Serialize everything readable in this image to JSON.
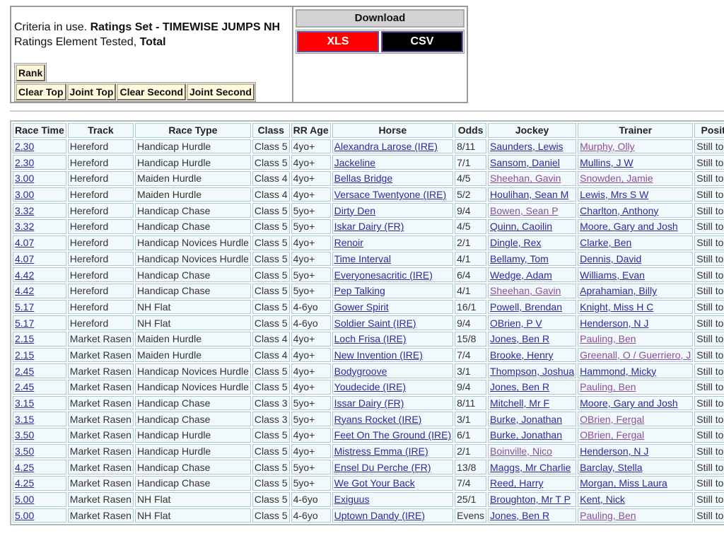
{
  "criteria": {
    "prefix": "Criteria in use.",
    "ratings_set": "Ratings Set - TIMEWISE JUMPS NH",
    "element_prefix": "Ratings Element Tested,",
    "element": "Total"
  },
  "buttons": {
    "rank": "Rank",
    "clear_top": "Clear Top",
    "joint_top": "Joint Top",
    "clear_second": "Clear Second",
    "joint_second": "Joint Second"
  },
  "download": {
    "title": "Download",
    "xls": "XLS",
    "csv": "CSV",
    "xls_color": "#ff0000",
    "csv_color": "#000000"
  },
  "table": {
    "headers": [
      "Race Time",
      "Track",
      "Race Type",
      "Class",
      "RR Age",
      "Horse",
      "Odds",
      "Jockey",
      "Trainer",
      "Position"
    ],
    "rows": [
      [
        "2.30",
        "Hereford",
        "Handicap Hurdle",
        "Class 5",
        "4yo+",
        "Alexandra Larose (IRE)",
        "8/11",
        "Saunders, Lewis",
        "Murphy, Olly",
        "Still to Run"
      ],
      [
        "2.30",
        "Hereford",
        "Handicap Hurdle",
        "Class 5",
        "4yo+",
        "Jackeline",
        "7/1",
        "Sansom, Daniel",
        "Mullins, J W",
        "Still to Run"
      ],
      [
        "3.00",
        "Hereford",
        "Maiden Hurdle",
        "Class 4",
        "4yo+",
        "Bellas Bridge",
        "4/5",
        "Sheehan, Gavin",
        "Snowden, Jamie",
        "Still to Run"
      ],
      [
        "3.00",
        "Hereford",
        "Maiden Hurdle",
        "Class 4",
        "4yo+",
        "Versace Twentyone (IRE)",
        "5/2",
        "Houlihan, Sean M",
        "Lewis, Mrs S W",
        "Still to Run"
      ],
      [
        "3.32",
        "Hereford",
        "Handicap Chase",
        "Class 5",
        "5yo+",
        "Dirty Den",
        "9/4",
        "Bowen, Sean P",
        "Charlton, Anthony",
        "Still to Run"
      ],
      [
        "3.32",
        "Hereford",
        "Handicap Chase",
        "Class 5",
        "5yo+",
        "Iskar Dairy (FR)",
        "4/5",
        "Quinn, Caoilin",
        "Moore, Gary and Josh",
        "Still to Run"
      ],
      [
        "4.07",
        "Hereford",
        "Handicap Novices Hurdle",
        "Class 5",
        "4yo+",
        "Renoir",
        "2/1",
        "Dingle, Rex",
        "Clarke, Ben",
        "Still to Run"
      ],
      [
        "4.07",
        "Hereford",
        "Handicap Novices Hurdle",
        "Class 5",
        "4yo+",
        "Time Interval",
        "4/1",
        "Bellamy, Tom",
        "Dennis, David",
        "Still to Run"
      ],
      [
        "4.42",
        "Hereford",
        "Handicap Chase",
        "Class 5",
        "5yo+",
        "Everyonesacritic (IRE)",
        "6/4",
        "Wedge, Adam",
        "Williams, Evan",
        "Still to Run"
      ],
      [
        "4.42",
        "Hereford",
        "Handicap Chase",
        "Class 5",
        "5yo+",
        "Pep Talking",
        "4/1",
        "Sheehan, Gavin",
        "Aprahamian, Billy",
        "Still to Run"
      ],
      [
        "5.17",
        "Hereford",
        "NH Flat",
        "Class 5",
        "4-6yo",
        "Gower Spirit",
        "16/1",
        "Powell, Brendan",
        "Knight, Miss H C",
        "Still to Run"
      ],
      [
        "5.17",
        "Hereford",
        "NH Flat",
        "Class 5",
        "4-6yo",
        "Soldier Saint (IRE)",
        "9/4",
        "OBrien, P V",
        "Henderson, N J",
        "Still to Run"
      ],
      [
        "2.15",
        "Market Rasen",
        "Maiden Hurdle",
        "Class 4",
        "4yo+",
        "Loch Frisa (IRE)",
        "15/8",
        "Jones, Ben R",
        "Pauling, Ben",
        "Still to Run"
      ],
      [
        "2.15",
        "Market Rasen",
        "Maiden Hurdle",
        "Class 4",
        "4yo+",
        "New Invention (IRE)",
        "7/4",
        "Brooke, Henry",
        "Greenall, O / Guerriero, J",
        "Still to Run"
      ],
      [
        "2.45",
        "Market Rasen",
        "Handicap Novices Hurdle",
        "Class 5",
        "4yo+",
        "Bodygroove",
        "3/1",
        "Thompson, Joshua",
        "Hammond, Micky",
        "Still to Run"
      ],
      [
        "2.45",
        "Market Rasen",
        "Handicap Novices Hurdle",
        "Class 5",
        "4yo+",
        "Youdecide (IRE)",
        "9/4",
        "Jones, Ben R",
        "Pauling, Ben",
        "Still to Run"
      ],
      [
        "3.15",
        "Market Rasen",
        "Handicap Chase",
        "Class 3",
        "5yo+",
        "Issar Dairy (FR)",
        "8/11",
        "Mitchell, Mr F",
        "Moore, Gary and Josh",
        "Still to Run"
      ],
      [
        "3.15",
        "Market Rasen",
        "Handicap Chase",
        "Class 3",
        "5yo+",
        "Ryans Rocket (IRE)",
        "3/1",
        "Burke, Jonathan",
        "OBrien, Fergal",
        "Still to Run"
      ],
      [
        "3.50",
        "Market Rasen",
        "Handicap Hurdle",
        "Class 5",
        "4yo+",
        "Feet On The Ground (IRE)",
        "6/1",
        "Burke, Jonathan",
        "OBrien, Fergal",
        "Still to Run"
      ],
      [
        "3.50",
        "Market Rasen",
        "Handicap Hurdle",
        "Class 5",
        "4yo+",
        "Mistress Emma (IRE)",
        "2/1",
        "Boinville, Nico",
        "Henderson, N J",
        "Still to Run"
      ],
      [
        "4.25",
        "Market Rasen",
        "Handicap Chase",
        "Class 5",
        "5yo+",
        "Ensel Du Perche (FR)",
        "13/8",
        "Maggs, Mr Charlie",
        "Barclay, Stella",
        "Still to Run"
      ],
      [
        "4.25",
        "Market Rasen",
        "Handicap Chase",
        "Class 5",
        "5yo+",
        "We Got Your Back",
        "7/4",
        "Reed, Harry",
        "Morgan, Miss Laura",
        "Still to Run"
      ],
      [
        "5.00",
        "Market Rasen",
        "NH Flat",
        "Class 5",
        "4-6yo",
        "Exiguus",
        "25/1",
        "Broughton, Mr T P",
        "Kent, Nick",
        "Still to Run"
      ],
      [
        "5.00",
        "Market Rasen",
        "NH Flat",
        "Class 5",
        "4-6yo",
        "Uptown Dandy (IRE)",
        "Evens",
        "Jones, Ben R",
        "Pauling, Ben",
        "Still to Run"
      ]
    ],
    "visited_jockeys": [
      "Sheehan, Gavin",
      "Bowen, Sean P",
      "Boinville, Nico"
    ],
    "visited_trainers": [
      "Murphy, Olly",
      "Snowden, Jamie",
      "Pauling, Ben",
      "Greenall, O / Guerriero, J",
      "OBrien, Fergal"
    ],
    "link_color": "#2a2a9a",
    "visited_color": "#8a4f9a"
  }
}
